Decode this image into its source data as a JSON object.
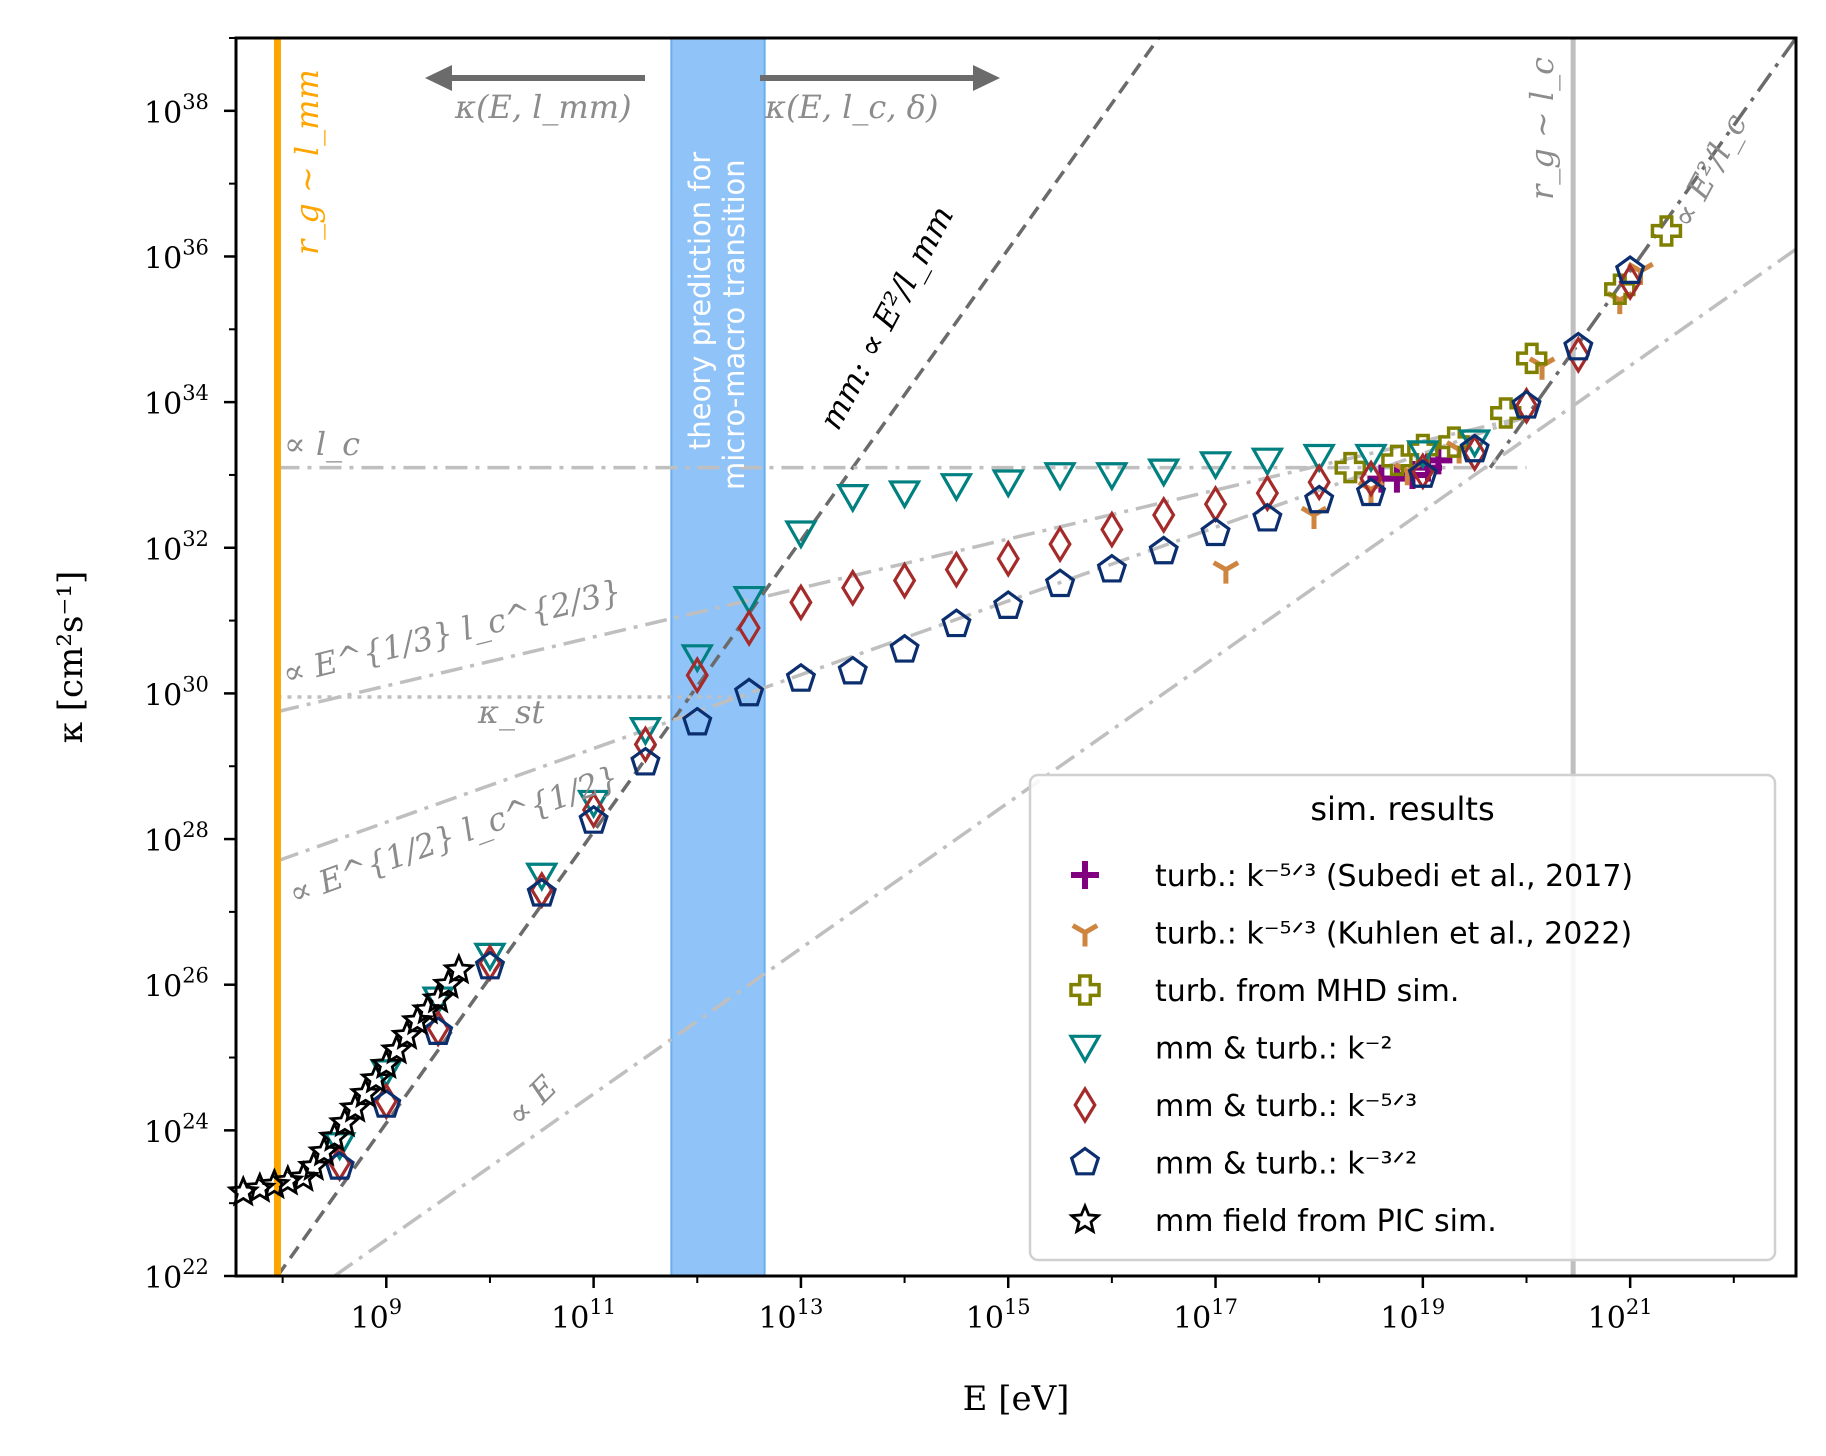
{
  "chart_data": {
    "type": "scatter",
    "title": "",
    "xlabel": "E [eV]",
    "ylabel": "κ [cm²s⁻¹]",
    "x_scale": "log",
    "y_scale": "log",
    "xlim_log10": [
      7.55,
      22.6
    ],
    "ylim_log10": [
      22,
      39
    ],
    "x_ticks": [
      {
        "exp": 9,
        "label": "10",
        "sup": "9"
      },
      {
        "exp": 11,
        "label": "10",
        "sup": "11"
      },
      {
        "exp": 13,
        "label": "10",
        "sup": "13"
      },
      {
        "exp": 15,
        "label": "10",
        "sup": "15"
      },
      {
        "exp": 17,
        "label": "10",
        "sup": "17"
      },
      {
        "exp": 19,
        "label": "10",
        "sup": "19"
      },
      {
        "exp": 21,
        "label": "10",
        "sup": "21"
      }
    ],
    "y_ticks": [
      {
        "exp": 22,
        "label": "10",
        "sup": "22"
      },
      {
        "exp": 24,
        "label": "10",
        "sup": "24"
      },
      {
        "exp": 26,
        "label": "10",
        "sup": "26"
      },
      {
        "exp": 28,
        "label": "10",
        "sup": "28"
      },
      {
        "exp": 30,
        "label": "10",
        "sup": "30"
      },
      {
        "exp": 32,
        "label": "10",
        "sup": "32"
      },
      {
        "exp": 34,
        "label": "10",
        "sup": "34"
      },
      {
        "exp": 36,
        "label": "10",
        "sup": "36"
      },
      {
        "exp": 38,
        "label": "10",
        "sup": "38"
      }
    ],
    "legend": {
      "title": "sim. results",
      "position": "lower-right"
    },
    "series": [
      {
        "name": "turb.: k^-5/3 (Subedi et al., 2017)",
        "label": "turb.: k⁻⁵ᐟ³ (Subedi et al., 2017)",
        "marker": "plus",
        "color": "#800080",
        "points": [
          [
            18.6,
            32.95
          ],
          [
            18.75,
            32.95
          ],
          [
            18.9,
            33.0
          ],
          [
            19.05,
            33.1
          ],
          [
            19.15,
            33.2
          ]
        ]
      },
      {
        "name": "turb.: k^-5/3 (Kuhlen et al., 2022)",
        "label": "turb.: k⁻⁵ᐟ³ (Kuhlen et al., 2022)",
        "marker": "tri_down",
        "color": "#cd853f",
        "points": [
          [
            17.1,
            31.7
          ],
          [
            17.95,
            32.45
          ],
          [
            18.5,
            32.8
          ],
          [
            18.85,
            33.05
          ],
          [
            19.35,
            33.35
          ],
          [
            20.15,
            34.5
          ],
          [
            20.9,
            35.4
          ],
          [
            21.1,
            35.8
          ]
        ]
      },
      {
        "name": "turb. from MHD sim.",
        "label": "turb. from MHD sim.",
        "marker": "thick_plus",
        "color": "#808000",
        "points": [
          [
            18.3,
            33.1
          ],
          [
            18.75,
            33.2
          ],
          [
            19.0,
            33.35
          ],
          [
            19.3,
            33.45
          ],
          [
            19.8,
            33.85
          ],
          [
            20.05,
            34.6
          ],
          [
            20.9,
            35.55
          ],
          [
            21.35,
            36.35
          ]
        ]
      },
      {
        "name": "mm & turb.: k^-2",
        "label": "mm & turb.: k⁻²",
        "marker": "triangle_down",
        "color": "#008080",
        "points": [
          [
            8.55,
            23.8
          ],
          [
            9.0,
            24.8
          ],
          [
            9.5,
            25.8
          ],
          [
            10.0,
            26.4
          ],
          [
            10.5,
            27.5
          ],
          [
            11.0,
            28.5
          ],
          [
            11.5,
            29.5
          ],
          [
            12.0,
            30.5
          ],
          [
            12.5,
            31.3
          ],
          [
            13.0,
            32.2
          ],
          [
            13.5,
            32.7
          ],
          [
            14.0,
            32.75
          ],
          [
            14.5,
            32.85
          ],
          [
            15.0,
            32.9
          ],
          [
            15.5,
            33.0
          ],
          [
            16.0,
            33.0
          ],
          [
            16.5,
            33.05
          ],
          [
            17.0,
            33.15
          ],
          [
            17.5,
            33.2
          ],
          [
            18.0,
            33.25
          ],
          [
            18.5,
            33.25
          ],
          [
            19.0,
            33.3
          ],
          [
            19.5,
            33.45
          ]
        ]
      },
      {
        "name": "mm & turb.: k^-5/3",
        "label": "mm & turb.: k⁻⁵ᐟ³",
        "marker": "diamond",
        "color": "#a52a2a",
        "points": [
          [
            8.55,
            23.55
          ],
          [
            9.0,
            24.4
          ],
          [
            9.5,
            25.4
          ],
          [
            10.0,
            26.3
          ],
          [
            10.5,
            27.3
          ],
          [
            11.0,
            28.4
          ],
          [
            11.5,
            29.3
          ],
          [
            12.0,
            30.25
          ],
          [
            12.5,
            30.9
          ],
          [
            13.0,
            31.25
          ],
          [
            13.5,
            31.45
          ],
          [
            14.0,
            31.55
          ],
          [
            14.5,
            31.7
          ],
          [
            15.0,
            31.85
          ],
          [
            15.5,
            32.05
          ],
          [
            16.0,
            32.25
          ],
          [
            16.5,
            32.45
          ],
          [
            17.0,
            32.6
          ],
          [
            17.5,
            32.75
          ],
          [
            18.0,
            32.9
          ],
          [
            18.5,
            32.95
          ],
          [
            19.0,
            33.05
          ],
          [
            19.5,
            33.3
          ],
          [
            20.0,
            33.95
          ],
          [
            20.5,
            34.65
          ],
          [
            21.0,
            35.65
          ]
        ]
      },
      {
        "name": "mm & turb.: k^-3/2",
        "label": "mm & turb.: k⁻³ᐟ²",
        "marker": "pentagon",
        "color": "#0b2e6f",
        "points": [
          [
            8.55,
            23.5
          ],
          [
            9.0,
            24.35
          ],
          [
            9.5,
            25.35
          ],
          [
            10.0,
            26.25
          ],
          [
            10.5,
            27.25
          ],
          [
            11.0,
            28.25
          ],
          [
            11.5,
            29.05
          ],
          [
            12.0,
            29.6
          ],
          [
            12.5,
            30.0
          ],
          [
            13.0,
            30.2
          ],
          [
            13.5,
            30.3
          ],
          [
            14.0,
            30.6
          ],
          [
            14.5,
            30.95
          ],
          [
            15.0,
            31.2
          ],
          [
            15.5,
            31.5
          ],
          [
            16.0,
            31.7
          ],
          [
            16.5,
            31.95
          ],
          [
            17.0,
            32.2
          ],
          [
            17.5,
            32.4
          ],
          [
            18.0,
            32.65
          ],
          [
            18.5,
            32.75
          ],
          [
            19.0,
            33.0
          ],
          [
            19.5,
            33.35
          ],
          [
            20.0,
            33.95
          ],
          [
            20.5,
            34.75
          ],
          [
            21.0,
            35.8
          ]
        ]
      },
      {
        "name": "mm field from PIC sim.",
        "label": "mm field from PIC sim.",
        "marker": "star",
        "color": "#000000",
        "points": [
          [
            7.62,
            23.15
          ],
          [
            7.78,
            23.2
          ],
          [
            7.92,
            23.25
          ],
          [
            8.05,
            23.3
          ],
          [
            8.2,
            23.35
          ],
          [
            8.3,
            23.5
          ],
          [
            8.4,
            23.7
          ],
          [
            8.5,
            23.9
          ],
          [
            8.6,
            24.1
          ],
          [
            8.7,
            24.3
          ],
          [
            8.8,
            24.5
          ],
          [
            8.9,
            24.7
          ],
          [
            9.0,
            24.9
          ],
          [
            9.1,
            25.1
          ],
          [
            9.2,
            25.3
          ],
          [
            9.3,
            25.5
          ],
          [
            9.4,
            25.65
          ],
          [
            9.5,
            25.8
          ],
          [
            9.6,
            26.0
          ],
          [
            9.7,
            26.2
          ]
        ]
      }
    ],
    "reference_lines": [
      {
        "name": "mm",
        "label": "mm: ∝ E²/l_mm",
        "style": "dashed",
        "color": "#6b6b6b",
        "x_log10": [
          7.95,
          22.6
        ],
        "y_log10": [
          22.0,
          51.3
        ]
      },
      {
        "name": "E2-lc",
        "label": "∝ E²/l_c",
        "style": "dash-dot",
        "color": "#6b6b6b",
        "x_log10": [
          19.65,
          22.6
        ],
        "y_log10": [
          33.1,
          39.0
        ]
      },
      {
        "name": "lc",
        "label": "∝ l_c",
        "style": "dash-dot",
        "color": "#bfbfbf",
        "x_log10": [
          7.95,
          20.0
        ],
        "y_log10": [
          33.1,
          33.1
        ]
      },
      {
        "name": "E13",
        "label": "∝ E^{1/3} l_c^{2/3}",
        "style": "dash-dot",
        "color": "#bfbfbf",
        "x_log10": [
          7.95,
          20.0
        ],
        "y_log10": [
          29.75,
          33.8
        ]
      },
      {
        "name": "E12",
        "label": "∝ E^{1/2} l_c^{1/2}",
        "style": "dash-dot",
        "color": "#bfbfbf",
        "x_log10": [
          7.95,
          20.0
        ],
        "y_log10": [
          27.7,
          33.8
        ]
      },
      {
        "name": "E",
        "label": "∝ E",
        "style": "dash-dot",
        "color": "#bfbfbf",
        "x_log10": [
          8.5,
          22.6
        ],
        "y_log10": [
          22.0,
          36.1
        ]
      },
      {
        "name": "kst",
        "label": "κ_st",
        "style": "dotted",
        "color": "#bfbfbf",
        "x_log10": [
          7.95,
          12.5
        ],
        "y_log10": [
          29.95,
          29.95
        ]
      }
    ],
    "vertical_markers": [
      {
        "name": "rg-lmm",
        "label": "r_g ∼ l_mm",
        "x_log10": 7.95,
        "color": "#ffa500"
      },
      {
        "name": "rg-lc",
        "label": "r_g ∼ l_c",
        "x_log10": 20.45,
        "color": "#bfbfbf"
      }
    ],
    "shaded_band": {
      "label_line1": "theory prediction for",
      "label_line2": "micro-macro transition",
      "x_log10": [
        11.75,
        12.65
      ],
      "color": "#90c4f9"
    },
    "arrow_labels": {
      "left": "κ(E, l_mm)",
      "right": "κ(E, l_c, δ)"
    }
  }
}
